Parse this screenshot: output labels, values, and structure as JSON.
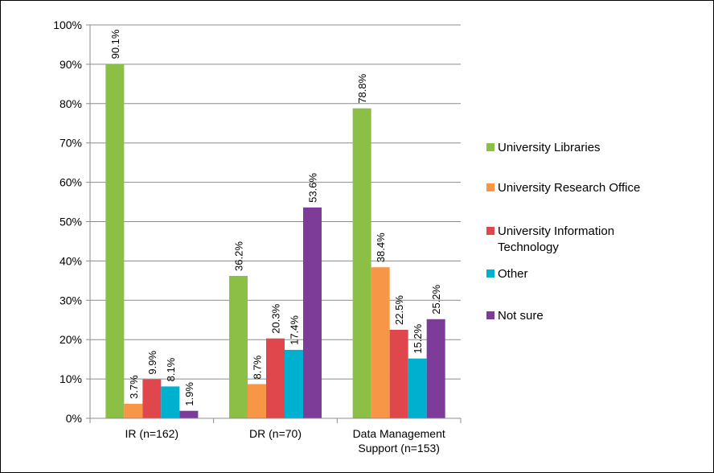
{
  "chart_data": {
    "type": "bar",
    "title": "",
    "xlabel": "",
    "ylabel": "",
    "ylim": [
      0,
      100
    ],
    "yticks": [
      "0%",
      "10%",
      "20%",
      "30%",
      "40%",
      "50%",
      "60%",
      "70%",
      "80%",
      "90%",
      "100%"
    ],
    "grid": true,
    "legend_position": "right",
    "categories": [
      [
        "IR (n=162)"
      ],
      [
        "DR (n=70)"
      ],
      [
        "Data Management",
        "Support (n=153)"
      ]
    ],
    "series": [
      {
        "name": [
          "University Libraries"
        ],
        "color": "#8CBF45",
        "values": [
          90.1,
          36.2,
          78.8
        ],
        "labels": [
          "90.1%",
          "36.2%",
          "78.8%"
        ]
      },
      {
        "name": [
          "University Research Office"
        ],
        "color": "#F79646",
        "values": [
          3.7,
          8.7,
          38.4
        ],
        "labels": [
          "3.7%",
          "8.7%",
          "38.4%"
        ]
      },
      {
        "name": [
          "University Information",
          "Technology"
        ],
        "color": "#E0474C",
        "values": [
          9.9,
          20.3,
          22.5
        ],
        "labels": [
          "9.9%",
          "20.3%",
          "22.5%"
        ]
      },
      {
        "name": [
          "Other"
        ],
        "color": "#00B0CF",
        "values": [
          8.1,
          17.4,
          15.2
        ],
        "labels": [
          "8.1%",
          "17.4%",
          "15.2%"
        ]
      },
      {
        "name": [
          "Not sure"
        ],
        "color": "#7D3C98",
        "values": [
          1.9,
          53.6,
          25.2
        ],
        "labels": [
          "1.9%",
          "53.6%",
          "25.2%"
        ]
      }
    ]
  }
}
